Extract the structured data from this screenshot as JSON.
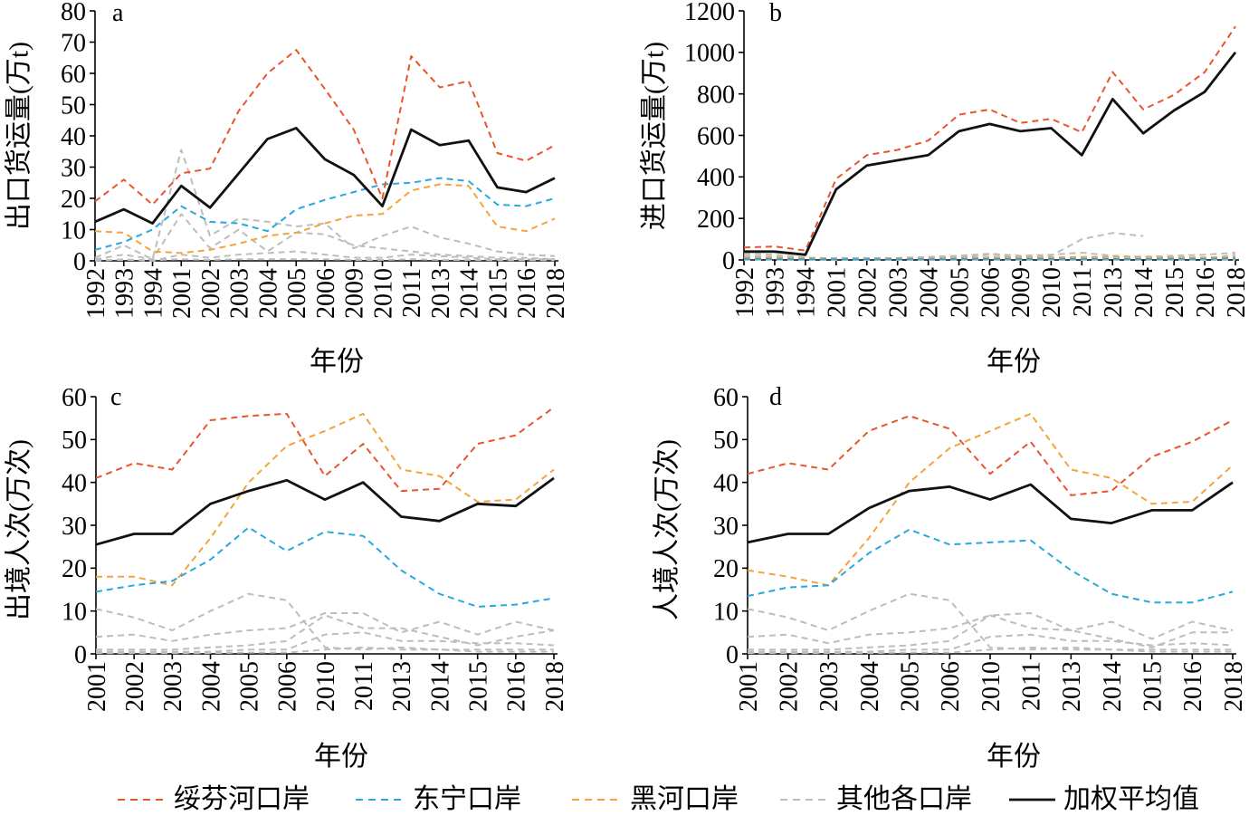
{
  "legend": {
    "placement": "bottom",
    "items": [
      {
        "label": "绥芬河口岸",
        "color": "#E9542D",
        "dashed": true
      },
      {
        "label": "东宁口岸",
        "color": "#27A8E0",
        "dashed": true
      },
      {
        "label": "黑河口岸",
        "color": "#F5A33A",
        "dashed": true
      },
      {
        "label": "其他各口岸",
        "color": "#BDBDBD",
        "dashed": true
      },
      {
        "label": "加权平均值",
        "color": "#111111",
        "dashed": false
      }
    ]
  },
  "chart_data": [
    {
      "label": "a",
      "type": "line",
      "xlabel": "年份",
      "ylabel": "出口货运量(万t)",
      "ylim": [
        0,
        80
      ],
      "yticks": [
        0,
        10,
        20,
        30,
        40,
        50,
        60,
        70,
        80
      ],
      "grid": false,
      "categories": [
        "1992",
        "1993",
        "1994",
        "2001",
        "2002",
        "2003",
        "2004",
        "2005",
        "2006",
        "2009",
        "2010",
        "2011",
        "2013",
        "2014",
        "2015",
        "2016",
        "2018"
      ],
      "series": [
        {
          "name": "其他各口岸",
          "values": [
            1,
            5,
            0.5,
            35.5,
            8,
            13.5,
            12.5,
            11,
            12,
            4,
            8,
            11,
            7.5,
            5.5,
            3,
            2,
            1.5
          ]
        },
        {
          "name": "其他各口岸",
          "values": [
            0.5,
            2,
            0.5,
            15,
            4,
            10,
            3,
            9,
            8.5,
            5,
            4,
            3,
            2,
            1.5,
            1,
            1,
            0.5
          ]
        },
        {
          "name": "其他各口岸",
          "values": [
            0,
            0.5,
            0,
            2,
            1,
            2,
            2.5,
            3,
            2,
            1,
            1,
            2,
            1.5,
            1,
            0.5,
            0.5,
            0.5
          ]
        },
        {
          "name": "其他各口岸",
          "values": [
            0.3,
            0.3,
            0.2,
            0.5,
            0.3,
            0.5,
            0.5,
            0.5,
            0.5,
            0.3,
            0.3,
            0.5,
            0.3,
            0.3,
            0.2,
            0.2,
            0.2
          ]
        },
        {
          "name": "黑河口岸",
          "values": [
            9.5,
            9,
            3,
            2.5,
            3.5,
            5.5,
            8,
            9,
            12,
            14.5,
            15,
            22.5,
            24.5,
            24,
            11,
            9.5,
            13.5
          ]
        },
        {
          "name": "东宁口岸",
          "values": [
            3.5,
            6,
            10,
            17.5,
            12.5,
            12,
            9.5,
            16.5,
            19.5,
            22,
            24.5,
            25,
            26.5,
            25.5,
            18,
            17.5,
            20
          ]
        },
        {
          "name": "绥芬河口岸",
          "values": [
            19,
            26,
            18,
            28,
            29.5,
            48,
            60,
            67.5,
            55,
            42,
            20,
            65.5,
            55.5,
            57.5,
            34.5,
            32,
            37
          ]
        },
        {
          "name": "加权平均值",
          "values": [
            12.5,
            16.5,
            12,
            24,
            17,
            28,
            39,
            42.5,
            32.5,
            27.5,
            17.5,
            42,
            37,
            38.5,
            23.5,
            22,
            26.5
          ]
        }
      ]
    },
    {
      "label": "b",
      "type": "line",
      "xlabel": "年份",
      "ylabel": "进口货运量(万t)",
      "ylim": [
        0,
        1200
      ],
      "yticks": [
        0,
        200,
        400,
        600,
        800,
        1000,
        1200
      ],
      "grid": false,
      "categories": [
        "1992",
        "1993",
        "1994",
        "2001",
        "2002",
        "2003",
        "2004",
        "2005",
        "2006",
        "2009",
        "2010",
        "2011",
        "2013",
        "2014",
        "2015",
        "2016",
        "2018"
      ],
      "series": [
        {
          "name": "其他各口岸",
          "values": [
            30,
            25,
            12,
            8,
            8,
            8,
            10,
            15,
            25,
            15,
            20,
            100,
            130,
            115,
            null,
            null,
            null
          ]
        },
        {
          "name": "其他各口岸",
          "values": [
            20,
            15,
            5,
            10,
            10,
            10,
            15,
            20,
            30,
            20,
            25,
            35,
            20,
            15,
            20,
            25,
            35
          ]
        },
        {
          "name": "其他各口岸",
          "values": [
            5,
            5,
            2,
            2,
            2,
            2,
            3,
            3,
            5,
            5,
            5,
            8,
            5,
            5,
            5,
            5,
            25
          ]
        },
        {
          "name": "其他各口岸",
          "values": [
            0,
            0,
            0,
            0,
            0,
            0,
            0,
            0,
            0,
            0,
            0,
            0,
            0,
            0,
            0,
            0,
            0
          ]
        },
        {
          "name": "黑河口岸",
          "values": [
            12,
            12,
            8,
            5,
            5,
            8,
            8,
            10,
            12,
            12,
            12,
            15,
            15,
            15,
            12,
            12,
            15
          ]
        },
        {
          "name": "东宁口岸",
          "values": [
            5,
            5,
            3,
            3,
            3,
            3,
            3,
            5,
            5,
            5,
            5,
            5,
            5,
            5,
            5,
            5,
            8
          ]
        },
        {
          "name": "绥芬河口岸",
          "values": [
            60,
            65,
            45,
            390,
            505,
            530,
            575,
            700,
            725,
            660,
            680,
            615,
            905,
            725,
            795,
            905,
            1125
          ]
        },
        {
          "name": "加权平均值",
          "values": [
            40,
            40,
            25,
            340,
            455,
            480,
            505,
            620,
            655,
            620,
            635,
            505,
            775,
            610,
            720,
            810,
            1000
          ]
        }
      ]
    },
    {
      "label": "c",
      "type": "line",
      "xlabel": "年份",
      "ylabel": "出境人次(万次)",
      "ylim": [
        0,
        60
      ],
      "yticks": [
        0,
        10,
        20,
        30,
        40,
        50,
        60
      ],
      "grid": false,
      "categories": [
        "2001",
        "2002",
        "2003",
        "2004",
        "2005",
        "2006",
        "2010",
        "2011",
        "2013",
        "2014",
        "2015",
        "2016",
        "2018"
      ],
      "series": [
        {
          "name": "其他各口岸",
          "values": [
            10.5,
            8.5,
            5.5,
            10,
            14,
            12.5,
            1.5,
            1,
            1.5,
            1,
            1,
            1,
            1
          ]
        },
        {
          "name": "其他各口岸",
          "values": [
            4,
            4.5,
            3,
            4.5,
            5.5,
            6,
            9.5,
            9.5,
            5,
            7.5,
            4.5,
            7.5,
            5.5
          ]
        },
        {
          "name": "其他各口岸",
          "values": [
            1,
            1,
            1,
            1.5,
            2,
            3,
            9,
            6,
            6,
            4,
            2,
            4,
            5.5
          ]
        },
        {
          "name": "其他各口岸",
          "values": [
            0.5,
            0.5,
            0.5,
            0.5,
            1,
            1,
            4.5,
            5,
            3,
            3,
            2.5,
            2.5,
            2
          ]
        },
        {
          "name": "其他各口岸",
          "values": [
            0.2,
            0.2,
            0.2,
            0.2,
            0.3,
            0.3,
            1,
            1.5,
            1,
            1,
            0.5,
            0.5,
            0.5
          ]
        },
        {
          "name": "黑河口岸",
          "values": [
            18,
            18,
            16,
            27,
            40,
            48.5,
            52,
            56,
            43,
            41.5,
            35.5,
            36,
            43
          ]
        },
        {
          "name": "东宁口岸",
          "values": [
            14.5,
            16,
            17,
            22,
            29.5,
            24,
            28.5,
            27.5,
            19.5,
            14,
            11,
            11.5,
            13
          ]
        },
        {
          "name": "绥芬河口岸",
          "values": [
            41,
            44.5,
            43,
            54.5,
            55.5,
            56,
            41.5,
            49,
            38,
            38.5,
            49,
            51,
            57.5
          ]
        },
        {
          "name": "加权平均值",
          "values": [
            25.5,
            28,
            28,
            35,
            38,
            40.5,
            36,
            40,
            32,
            31,
            35,
            34.5,
            41
          ]
        }
      ]
    },
    {
      "label": "d",
      "type": "line",
      "xlabel": "年份",
      "ylabel": "人境人次(万次)",
      "ylim": [
        0,
        60
      ],
      "yticks": [
        0,
        10,
        20,
        30,
        40,
        50,
        60
      ],
      "grid": false,
      "categories": [
        "2001",
        "2002",
        "2003",
        "2004",
        "2005",
        "2006",
        "2010",
        "2011",
        "2013",
        "2014",
        "2015",
        "2016",
        "2018"
      ],
      "series": [
        {
          "name": "其他各口岸",
          "values": [
            10.5,
            8.5,
            5.5,
            10,
            14,
            12.5,
            1.5,
            1,
            1.5,
            1,
            1,
            1,
            1
          ]
        },
        {
          "name": "其他各口岸",
          "values": [
            4,
            4.5,
            2.5,
            4.5,
            5,
            6,
            9,
            9.5,
            5.5,
            7.5,
            3.5,
            7.5,
            5.5
          ]
        },
        {
          "name": "其他各口岸",
          "values": [
            1,
            1,
            1,
            1.5,
            2,
            3,
            9,
            6,
            5.5,
            3.5,
            1.5,
            5,
            5
          ]
        },
        {
          "name": "其他各口岸",
          "values": [
            0.5,
            0.5,
            0.5,
            0.5,
            1,
            1,
            4,
            4.5,
            3,
            3,
            2,
            2.5,
            2
          ]
        },
        {
          "name": "其他各口岸",
          "values": [
            0.2,
            0.2,
            0.2,
            0.2,
            0.3,
            0.3,
            1,
            1.5,
            1,
            1,
            0.5,
            0.5,
            0.5
          ]
        },
        {
          "name": "黑河口岸",
          "values": [
            19.5,
            18,
            16,
            27,
            40,
            48,
            52,
            56,
            43,
            41,
            35,
            35.5,
            44
          ]
        },
        {
          "name": "东宁口岸",
          "values": [
            13.5,
            15.5,
            16,
            23.5,
            29,
            25.5,
            26,
            26.5,
            19.5,
            14,
            12,
            12,
            14.5
          ]
        },
        {
          "name": "绥芬河口岸",
          "values": [
            42,
            44.5,
            43,
            52,
            55.5,
            52.5,
            42,
            49.5,
            37,
            38,
            46,
            49.5,
            54.5
          ]
        },
        {
          "name": "加权平均值",
          "values": [
            26,
            28,
            28,
            34,
            38,
            39,
            36,
            39.5,
            31.5,
            30.5,
            33.5,
            33.5,
            40
          ]
        }
      ]
    }
  ]
}
